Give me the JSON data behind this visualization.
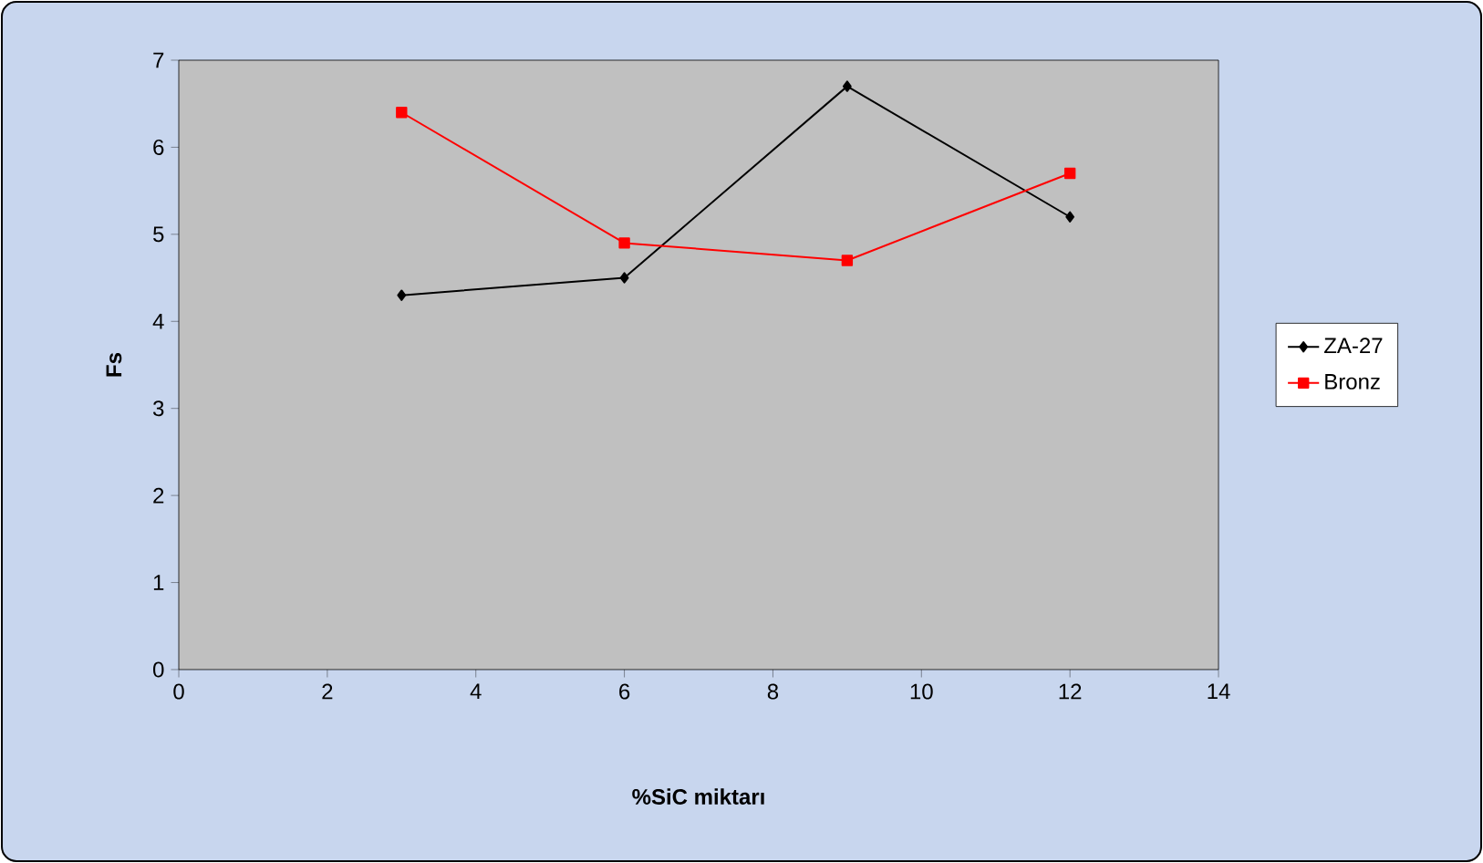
{
  "chart_data": {
    "type": "line",
    "xlabel": "%SiC miktarı",
    "ylabel": "Fs",
    "x": [
      3,
      6,
      9,
      12
    ],
    "series": [
      {
        "name": "ZA-27",
        "color": "#000000",
        "marker": "diamond",
        "values": [
          4.3,
          4.5,
          6.7,
          5.2
        ]
      },
      {
        "name": "Bronz",
        "color": "#ff0000",
        "marker": "square",
        "values": [
          6.4,
          4.9,
          4.7,
          5.7
        ]
      }
    ],
    "xlim": [
      0,
      14
    ],
    "xticks": [
      0,
      2,
      4,
      6,
      8,
      10,
      12,
      14
    ],
    "ylim": [
      0,
      7
    ],
    "yticks": [
      0,
      1,
      2,
      3,
      4,
      5,
      6,
      7
    ],
    "grid": false,
    "legend": "right"
  }
}
